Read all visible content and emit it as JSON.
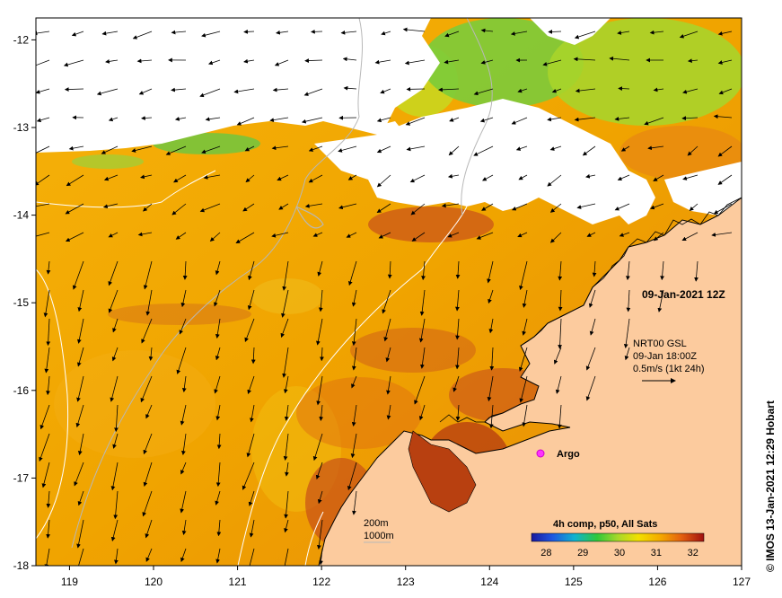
{
  "map": {
    "lon_range": [
      118.6,
      127
    ],
    "lat_range": [
      -18,
      -11.75
    ],
    "lon_ticks": [
      "119",
      "120",
      "121",
      "122",
      "123",
      "124",
      "125",
      "126",
      "127"
    ],
    "lat_ticks": [
      "-12",
      "-13",
      "-14",
      "-15",
      "-16",
      "-17",
      "-18"
    ],
    "date_label": "09-Jan-2021 12Z",
    "current_info": {
      "line1": "NRT00 GSL",
      "line2": "09-Jan 18:00Z",
      "line3": "0.5m/s (1kt 24h)"
    },
    "argo_label": "Argo",
    "depth_labels": {
      "line1": "200m",
      "line2": "1000m"
    },
    "colorbar": {
      "title": "4h comp, p50, All Sats",
      "labels": [
        "28",
        "29",
        "30",
        "31",
        "32"
      ],
      "range": [
        27.6,
        32.3
      ]
    },
    "credit": "© IMOS 13-Jan-2021 12:29 Hobart",
    "colors": {
      "land": "#fccb9e",
      "warm": "#f0a800",
      "hot": "#c8501a",
      "cool": "#9ad23a",
      "cloud": "#ffffff",
      "argo": "#ff33ff"
    }
  }
}
